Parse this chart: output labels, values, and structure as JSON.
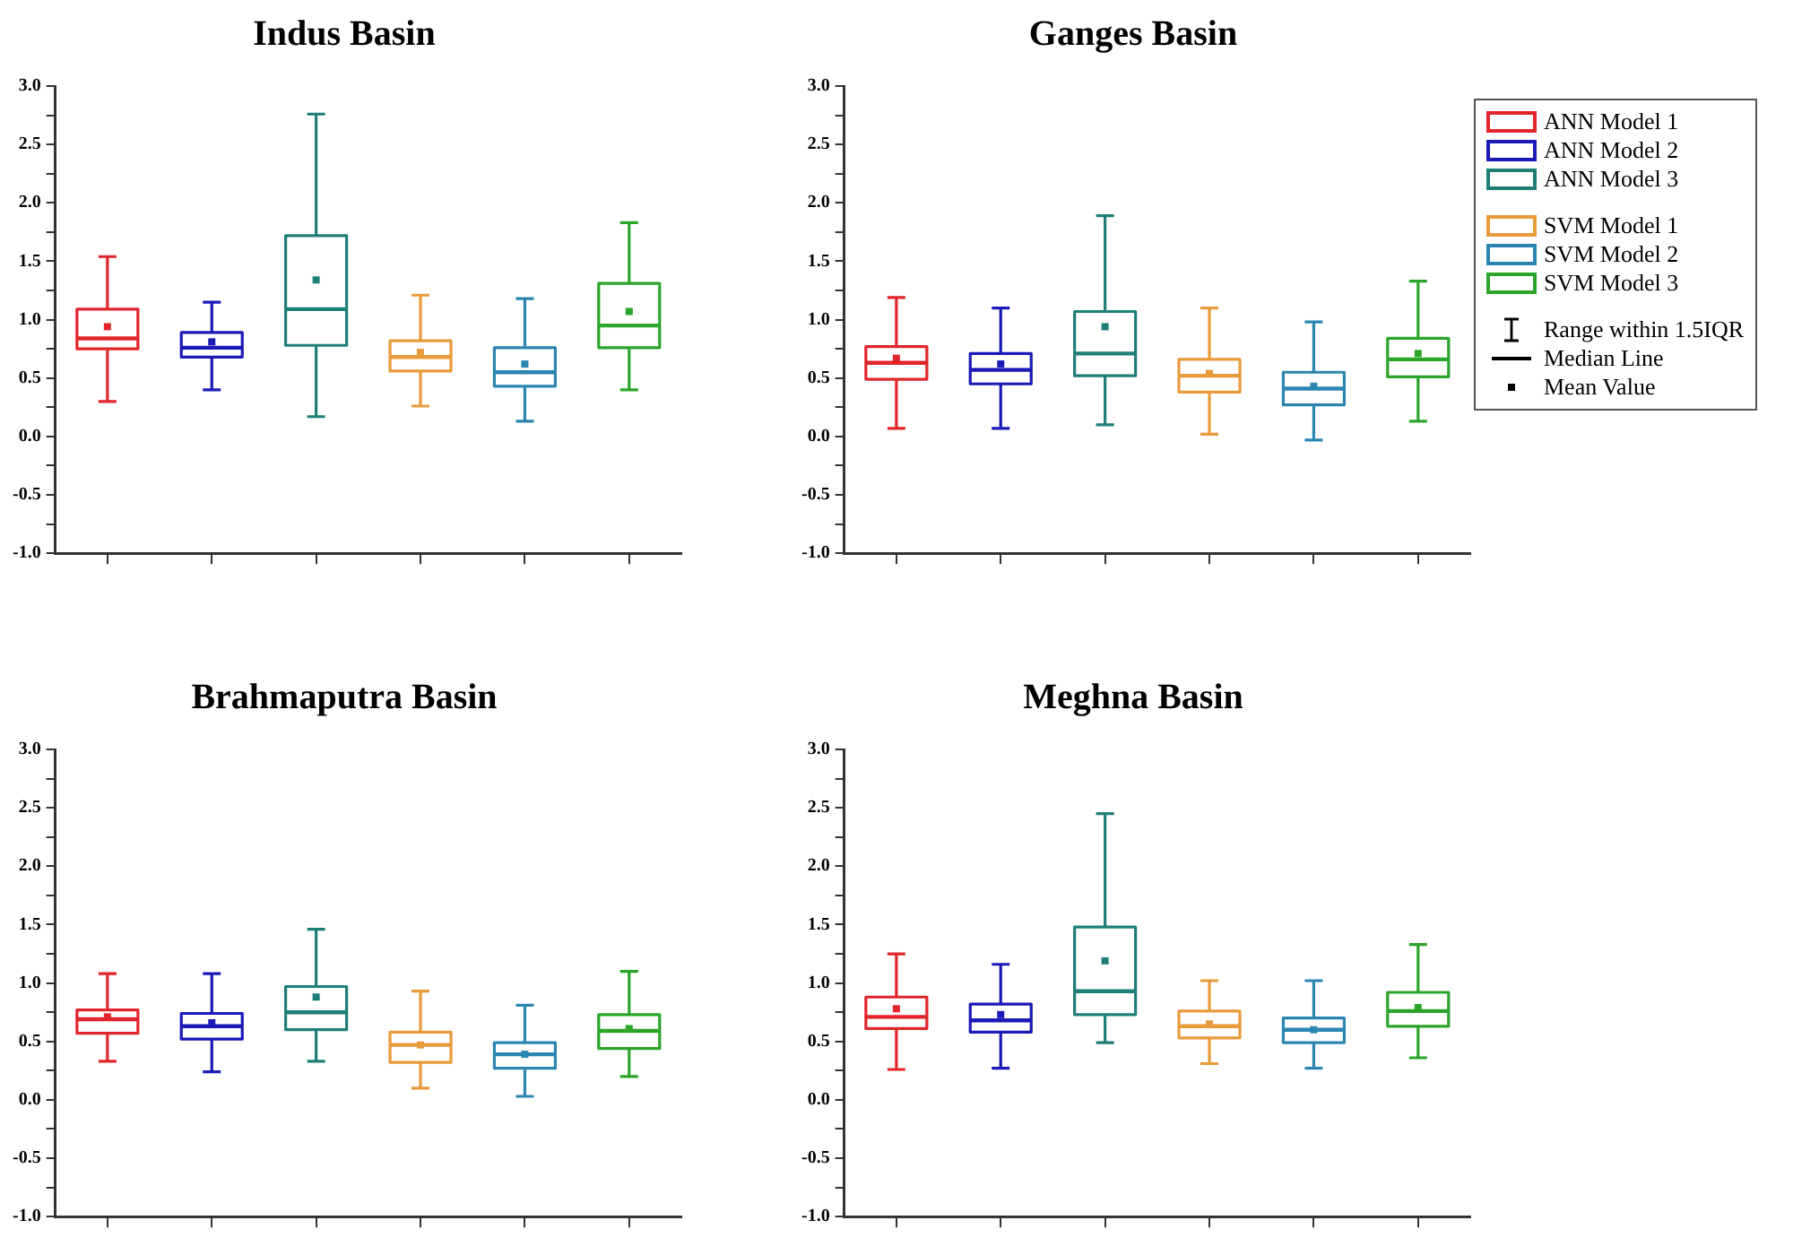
{
  "chart_data": [
    {
      "type": "box",
      "title": "Indus Basin",
      "categories": [
        null,
        null,
        null,
        null,
        null,
        null
      ],
      "ylim": [
        -1,
        3
      ],
      "yticks": [
        {
          "value": -1,
          "label": "-1.0"
        },
        {
          "value": -0.75,
          "label": null
        },
        {
          "value": -0.5,
          "label": "-0.5"
        },
        {
          "value": -0.25,
          "label": null
        },
        {
          "value": 0,
          "label": "0.0"
        },
        {
          "value": 0.25,
          "label": null
        },
        0.5,
        {
          "value": 0.75,
          "label": null
        },
        {
          "value": 1,
          "label": "1.0"
        },
        {
          "value": 1.25,
          "label": null
        },
        1.5,
        {
          "value": 1.75,
          "label": null
        },
        {
          "value": 2,
          "label": "2.0"
        },
        {
          "value": 2.25,
          "label": null
        },
        2.5,
        {
          "value": 2.75,
          "label": null
        },
        {
          "value": 3,
          "label": "3.0"
        }
      ],
      "tick_labels": "y",
      "grid": false,
      "series": [
        {
          "color": "#e0262b",
          "boxes": [
            {
              "low": 0.3,
              "q1": 0.75,
              "median": 0.84,
              "q3": 1.09,
              "high": 1.54,
              "mean": 0.94
            },
            null,
            null,
            null,
            null,
            null
          ]
        },
        {
          "color": "#1a1ab8",
          "boxes": [
            null,
            {
              "low": 0.4,
              "q1": 0.68,
              "median": 0.76,
              "q3": 0.89,
              "high": 1.15,
              "mean": 0.81
            },
            null,
            null,
            null,
            null
          ]
        },
        {
          "color": "#1e7f78",
          "boxes": [
            null,
            null,
            {
              "low": 0.17,
              "q1": 0.78,
              "median": 1.09,
              "q3": 1.72,
              "high": 2.76,
              "mean": 1.34
            },
            null,
            null,
            null
          ]
        },
        {
          "color": "#e89b3a",
          "boxes": [
            null,
            null,
            null,
            {
              "low": 0.26,
              "q1": 0.56,
              "median": 0.68,
              "q3": 0.82,
              "high": 1.21,
              "mean": 0.72
            },
            null,
            null
          ]
        },
        {
          "color": "#2a86b0",
          "boxes": [
            null,
            null,
            null,
            null,
            {
              "low": 0.13,
              "q1": 0.43,
              "median": 0.55,
              "q3": 0.76,
              "high": 1.18,
              "mean": 0.62
            },
            null
          ]
        },
        {
          "color": "#2aa52a",
          "boxes": [
            null,
            null,
            null,
            null,
            null,
            {
              "low": 0.4,
              "q1": 0.76,
              "median": 0.95,
              "q3": 1.31,
              "high": 1.83,
              "mean": 1.07
            }
          ]
        }
      ]
    },
    {
      "type": "box",
      "title": "Ganges Basin",
      "categories": [
        null,
        null,
        null,
        null,
        null,
        null
      ],
      "ylim": [
        -1,
        3
      ],
      "yticks": [
        {
          "value": -1,
          "label": "-1.0"
        },
        {
          "value": -0.75,
          "label": null
        },
        {
          "value": -0.5,
          "label": "-0.5"
        },
        {
          "value": -0.25,
          "label": null
        },
        {
          "value": 0,
          "label": "0.0"
        },
        {
          "value": 0.25,
          "label": null
        },
        0.5,
        {
          "value": 0.75,
          "label": null
        },
        {
          "value": 1,
          "label": "1.0"
        },
        {
          "value": 1.25,
          "label": null
        },
        1.5,
        {
          "value": 1.75,
          "label": null
        },
        {
          "value": 2,
          "label": "2.0"
        },
        {
          "value": 2.25,
          "label": null
        },
        2.5,
        {
          "value": 2.75,
          "label": null
        },
        {
          "value": 3,
          "label": "3.0"
        }
      ],
      "tick_labels": "y",
      "grid": false,
      "legend": "right",
      "annotations": [
        "Range within 1.5IQR",
        "Median Line",
        "Mean Value"
      ],
      "series": [
        {
          "name": "ANN Model 1",
          "color": "#e0262b",
          "boxes": [
            {
              "low": 0.07,
              "q1": 0.49,
              "median": 0.63,
              "q3": 0.77,
              "high": 1.19,
              "mean": 0.67
            },
            null,
            null,
            null,
            null,
            null
          ]
        },
        {
          "name": "ANN Model 2",
          "color": "#1a1ab8",
          "boxes": [
            null,
            {
              "low": 0.07,
              "q1": 0.45,
              "median": 0.57,
              "q3": 0.71,
              "high": 1.1,
              "mean": 0.62
            },
            null,
            null,
            null,
            null
          ]
        },
        {
          "name": "ANN Model 3",
          "color": "#1e7f78",
          "boxes": [
            null,
            null,
            {
              "low": 0.1,
              "q1": 0.52,
              "median": 0.71,
              "q3": 1.07,
              "high": 1.89,
              "mean": 0.94
            },
            null,
            null,
            null
          ]
        },
        {
          "name": "SVM Model 1",
          "color": "#e89b3a",
          "boxes": [
            null,
            null,
            null,
            {
              "low": 0.02,
              "q1": 0.38,
              "median": 0.52,
              "q3": 0.66,
              "high": 1.1,
              "mean": 0.54
            },
            null,
            null
          ]
        },
        {
          "name": "SVM Model 2",
          "color": "#2a86b0",
          "boxes": [
            null,
            null,
            null,
            null,
            {
              "low": -0.03,
              "q1": 0.27,
              "median": 0.41,
              "q3": 0.55,
              "high": 0.98,
              "mean": 0.43
            },
            null
          ]
        },
        {
          "name": "SVM Model 3",
          "color": "#2aa52a",
          "boxes": [
            null,
            null,
            null,
            null,
            null,
            {
              "low": 0.13,
              "q1": 0.51,
              "median": 0.66,
              "q3": 0.84,
              "high": 1.33,
              "mean": 0.71
            }
          ]
        }
      ]
    },
    {
      "type": "box",
      "title": "Brahmaputra Basin",
      "categories": [
        null,
        null,
        null,
        null,
        null,
        null
      ],
      "ylim": [
        -1,
        3
      ],
      "yticks": [
        {
          "value": -1,
          "label": "-1.0"
        },
        {
          "value": -0.75,
          "label": null
        },
        {
          "value": -0.5,
          "label": "-0.5"
        },
        {
          "value": -0.25,
          "label": null
        },
        {
          "value": 0,
          "label": "0.0"
        },
        {
          "value": 0.25,
          "label": null
        },
        0.5,
        {
          "value": 0.75,
          "label": null
        },
        {
          "value": 1,
          "label": "1.0"
        },
        {
          "value": 1.25,
          "label": null
        },
        1.5,
        {
          "value": 1.75,
          "label": null
        },
        {
          "value": 2,
          "label": "2.0"
        },
        {
          "value": 2.25,
          "label": null
        },
        2.5,
        {
          "value": 2.75,
          "label": null
        },
        {
          "value": 3,
          "label": "3.0"
        }
      ],
      "tick_labels": "y",
      "grid": false,
      "series": [
        {
          "color": "#e0262b",
          "boxes": [
            {
              "low": 0.33,
              "q1": 0.57,
              "median": 0.69,
              "q3": 0.77,
              "high": 1.08,
              "mean": 0.71
            },
            null,
            null,
            null,
            null,
            null
          ]
        },
        {
          "color": "#1a1ab8",
          "boxes": [
            null,
            {
              "low": 0.24,
              "q1": 0.52,
              "median": 0.63,
              "q3": 0.74,
              "high": 1.08,
              "mean": 0.66
            },
            null,
            null,
            null,
            null
          ]
        },
        {
          "color": "#1e7f78",
          "boxes": [
            null,
            null,
            {
              "low": 0.33,
              "q1": 0.6,
              "median": 0.75,
              "q3": 0.97,
              "high": 1.46,
              "mean": 0.88
            },
            null,
            null,
            null
          ]
        },
        {
          "color": "#e89b3a",
          "boxes": [
            null,
            null,
            null,
            {
              "low": 0.1,
              "q1": 0.32,
              "median": 0.47,
              "q3": 0.58,
              "high": 0.93,
              "mean": 0.47
            },
            null,
            null
          ]
        },
        {
          "color": "#2a86b0",
          "boxes": [
            null,
            null,
            null,
            null,
            {
              "low": 0.03,
              "q1": 0.27,
              "median": 0.39,
              "q3": 0.49,
              "high": 0.81,
              "mean": 0.39
            },
            null
          ]
        },
        {
          "color": "#2aa52a",
          "boxes": [
            null,
            null,
            null,
            null,
            null,
            {
              "low": 0.2,
              "q1": 0.44,
              "median": 0.59,
              "q3": 0.73,
              "high": 1.1,
              "mean": 0.61
            }
          ]
        }
      ]
    },
    {
      "type": "box",
      "title": "Meghna Basin",
      "categories": [
        null,
        null,
        null,
        null,
        null,
        null
      ],
      "ylim": [
        -1,
        3
      ],
      "yticks": [
        {
          "value": -1,
          "label": "-1.0"
        },
        {
          "value": -0.75,
          "label": null
        },
        {
          "value": -0.5,
          "label": "-0.5"
        },
        {
          "value": -0.25,
          "label": null
        },
        {
          "value": 0,
          "label": "0.0"
        },
        {
          "value": 0.25,
          "label": null
        },
        0.5,
        {
          "value": 0.75,
          "label": null
        },
        {
          "value": 1,
          "label": "1.0"
        },
        {
          "value": 1.25,
          "label": null
        },
        1.5,
        {
          "value": 1.75,
          "label": null
        },
        {
          "value": 2,
          "label": "2.0"
        },
        {
          "value": 2.25,
          "label": null
        },
        2.5,
        {
          "value": 2.75,
          "label": null
        },
        {
          "value": 3,
          "label": "3.0"
        }
      ],
      "tick_labels": "y",
      "grid": false,
      "series": [
        {
          "color": "#e0262b",
          "boxes": [
            {
              "low": 0.26,
              "q1": 0.61,
              "median": 0.71,
              "q3": 0.88,
              "high": 1.25,
              "mean": 0.78
            },
            null,
            null,
            null,
            null,
            null
          ]
        },
        {
          "color": "#1a1ab8",
          "boxes": [
            null,
            {
              "low": 0.27,
              "q1": 0.58,
              "median": 0.68,
              "q3": 0.82,
              "high": 1.16,
              "mean": 0.73
            },
            null,
            null,
            null,
            null
          ]
        },
        {
          "color": "#1e7f78",
          "boxes": [
            null,
            null,
            {
              "low": 0.49,
              "q1": 0.73,
              "median": 0.93,
              "q3": 1.48,
              "high": 2.45,
              "mean": 1.19
            },
            null,
            null,
            null
          ]
        },
        {
          "color": "#e89b3a",
          "boxes": [
            null,
            null,
            null,
            {
              "low": 0.31,
              "q1": 0.53,
              "median": 0.63,
              "q3": 0.76,
              "high": 1.02,
              "mean": 0.65
            },
            null,
            null
          ]
        },
        {
          "color": "#2a86b0",
          "boxes": [
            null,
            null,
            null,
            null,
            {
              "low": 0.27,
              "q1": 0.49,
              "median": 0.6,
              "q3": 0.7,
              "high": 1.02,
              "mean": 0.6
            },
            null
          ]
        },
        {
          "color": "#2aa52a",
          "boxes": [
            null,
            null,
            null,
            null,
            null,
            {
              "low": 0.36,
              "q1": 0.63,
              "median": 0.76,
              "q3": 0.92,
              "high": 1.33,
              "mean": 0.79
            }
          ]
        }
      ]
    }
  ]
}
